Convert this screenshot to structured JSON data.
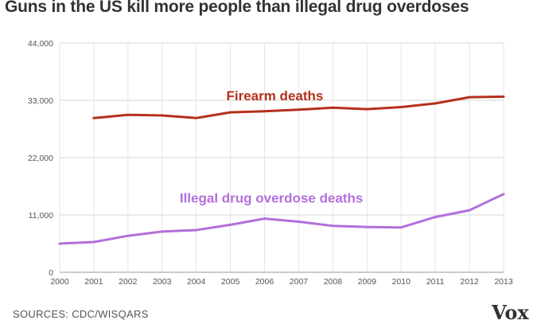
{
  "title": "Guns in the US kill more people than illegal drug overdoses",
  "source_text": "SOURCES: CDC/WISQARS",
  "logo_text": "Vox",
  "chart_data": {
    "type": "line",
    "title": "Guns in the US kill more people than illegal drug overdoses",
    "xlabel": "",
    "ylabel": "",
    "x": [
      2000,
      2001,
      2002,
      2003,
      2004,
      2005,
      2006,
      2007,
      2008,
      2009,
      2010,
      2011,
      2012,
      2013
    ],
    "xticks": [
      "2000",
      "2001",
      "2002",
      "2003",
      "2004",
      "2005",
      "2006",
      "2007",
      "2008",
      "2009",
      "2010",
      "2011",
      "2012",
      "2013"
    ],
    "ylim": [
      0,
      44000
    ],
    "yticks": [
      0,
      11000,
      22000,
      33000,
      44000
    ],
    "ytick_labels": [
      "0",
      "11,000",
      "22,000",
      "33,000",
      "44,000"
    ],
    "grid": true,
    "legend": "inline labels",
    "series": [
      {
        "name": "Firearm deaths",
        "color": "#b5301b",
        "label_x": 2006.3,
        "label_y": 33000,
        "values": [
          null,
          29600,
          30200,
          30100,
          29600,
          30700,
          30900,
          31200,
          31600,
          31300,
          31700,
          32400,
          33600,
          33700
        ]
      },
      {
        "name": "Illegal drug overdose deaths",
        "color": "#b36fdb",
        "label_x": 2006.2,
        "label_y": 13400,
        "values": [
          5500,
          5800,
          7000,
          7800,
          8100,
          9100,
          10300,
          9700,
          8900,
          8700,
          8600,
          10600,
          11900,
          15000
        ]
      }
    ]
  }
}
